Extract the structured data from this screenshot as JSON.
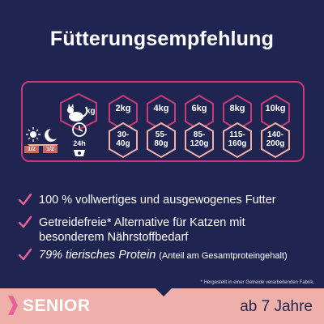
{
  "title": "Fütterungsempfehlung",
  "feeding_table": {
    "weight_unit": "kg",
    "period": "24h",
    "portions": [
      "1/2",
      "1/2"
    ],
    "columns": [
      {
        "weight": "2kg",
        "amount_line1": "30-",
        "amount_line2": "40g"
      },
      {
        "weight": "4kg",
        "amount_line1": "55-",
        "amount_line2": "80g"
      },
      {
        "weight": "6kg",
        "amount_line1": "85-",
        "amount_line2": "120g"
      },
      {
        "weight": "8kg",
        "amount_line1": "115-",
        "amount_line2": "160g"
      },
      {
        "weight": "10kg",
        "amount_line1": "140-",
        "amount_line2": "200g"
      }
    ]
  },
  "benefits": [
    {
      "text": "100 % vollwertiges und ausgewogenes Futter"
    },
    {
      "line1": "Getreidefreie* Alternative für Katzen mit",
      "line2": "besonderem Nährstoffbedarf"
    },
    {
      "text": "79% tierisches Protein",
      "note": "(Anteil am Gesamtproteingehalt)"
    }
  ],
  "footnote": "* Hergestellt in einer Getreide verarbeitenden Fabrik.",
  "footer": {
    "label": "SENIOR",
    "age": "ab 7 Jahre"
  },
  "colors": {
    "background": "#1f2450",
    "accent": "#c83a78",
    "band": "#f0b0aa",
    "portion": "#c56b5e"
  },
  "icons": [
    "cat-icon",
    "clock-icon",
    "bowl-icon",
    "sun-icon",
    "moon-icon",
    "checkmark-icon",
    "arrow-icon"
  ]
}
